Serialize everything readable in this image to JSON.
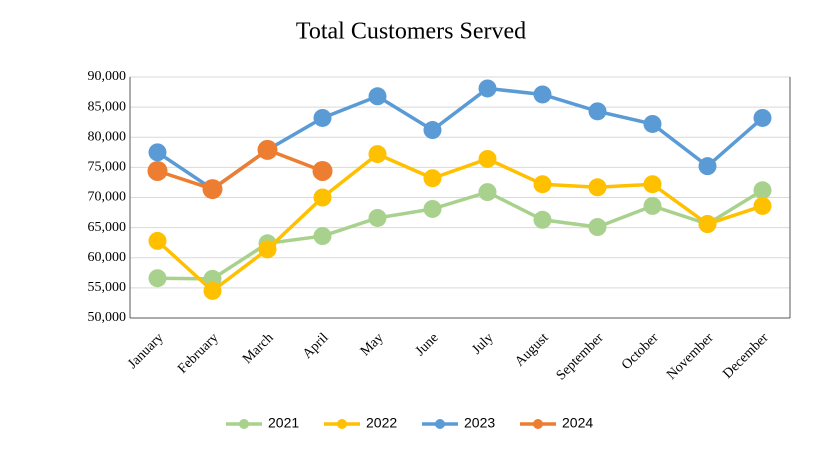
{
  "chart_data": {
    "type": "line",
    "title": "Total Customers Served",
    "categories": [
      "January",
      "February",
      "March",
      "April",
      "May",
      "June",
      "July",
      "August",
      "September",
      "October",
      "November",
      "December"
    ],
    "series": [
      {
        "name": "2021",
        "color": "#a9d18e",
        "values": [
          56600,
          56500,
          62400,
          63600,
          66600,
          68100,
          70900,
          66300,
          65100,
          68600,
          65600,
          71200
        ]
      },
      {
        "name": "2022",
        "color": "#ffc000",
        "values": [
          62800,
          54500,
          61400,
          70000,
          77200,
          73200,
          76400,
          72200,
          71700,
          72200,
          65600,
          68600
        ]
      },
      {
        "name": "2023",
        "color": "#5b9bd5",
        "values": [
          77500,
          71400,
          77900,
          83200,
          86800,
          81200,
          88100,
          87100,
          84300,
          82200,
          75200,
          83200
        ]
      },
      {
        "name": "2024",
        "color": "#ed7d31",
        "values": [
          74400,
          71400,
          77900,
          74400,
          null,
          null,
          null,
          null,
          null,
          null,
          null,
          null
        ]
      }
    ],
    "ylim": [
      50000,
      90000
    ],
    "yticks": [
      {
        "value": 50000,
        "label": "50,000"
      },
      {
        "value": 55000,
        "label": "55,000"
      },
      {
        "value": 60000,
        "label": "60,000"
      },
      {
        "value": 65000,
        "label": "65,000"
      },
      {
        "value": 70000,
        "label": "70,000"
      },
      {
        "value": 75000,
        "label": "75,000"
      },
      {
        "value": 80000,
        "label": "80,000"
      },
      {
        "value": 85000,
        "label": "85,000"
      },
      {
        "value": 90000,
        "label": "90,000"
      }
    ],
    "grid": true,
    "legend": "bottom"
  }
}
